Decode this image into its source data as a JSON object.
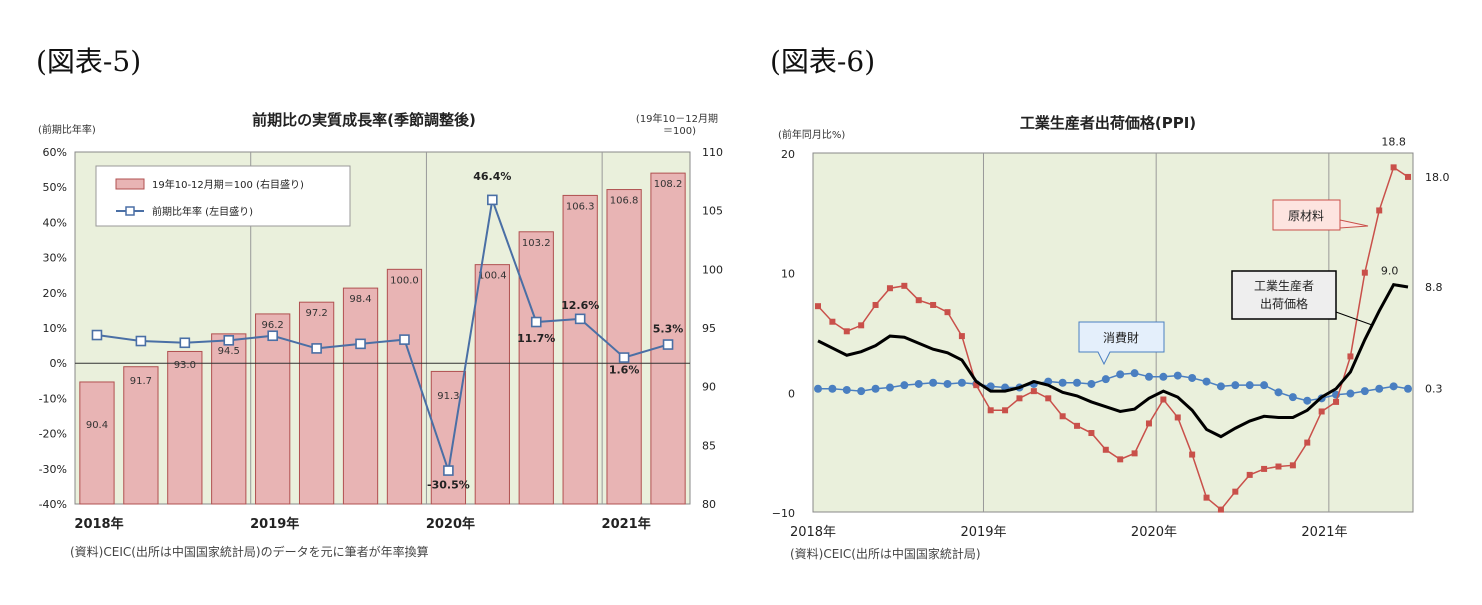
{
  "figure5": {
    "label": "(図表-5)",
    "title": "前期比の実質成長率(季節調整後)",
    "left_axis_label": "(前期比年率)",
    "right_axis_label_line1": "(19年10－12月期",
    "right_axis_label_line2": "＝100)",
    "legend_bar": "19年10-12月期＝100 (右目盛り)",
    "legend_line": "前期比年率 (左目盛り)",
    "source": "(資料)CEIC(出所は中国国家統計局)のデータを元に筆者が年率換算",
    "year_labels": [
      "2018年",
      "2019年",
      "2020年",
      "2021年"
    ]
  },
  "figure6": {
    "label": "(図表-6)",
    "title": "工業生産者出荷価格(PPI)",
    "left_axis_label": "(前年同月比%)",
    "callout_raw": "原材料",
    "callout_ppi_line1": "工業生産者",
    "callout_ppi_line2": "出荷価格",
    "callout_consumer": "消費財",
    "source": "(資料)CEIC(出所は中国国家統計局)",
    "year_labels": [
      "2018年",
      "2019年",
      "2020年",
      "2021年"
    ]
  },
  "chart_data": [
    {
      "type": "bar",
      "categories": [
        "2018Q1",
        "2018Q2",
        "2018Q3",
        "2018Q4",
        "2019Q1",
        "2019Q2",
        "2019Q3",
        "2019Q4",
        "2020Q1",
        "2020Q2",
        "2020Q3",
        "2020Q4",
        "2021Q1",
        "2021Q2"
      ],
      "series": [
        {
          "name": "19年10-12月期＝100 (右目盛り)",
          "axis": "right",
          "kind": "bar",
          "color": "#e8b4b4",
          "values": [
            90.4,
            91.7,
            93.0,
            94.5,
            96.2,
            97.2,
            98.4,
            100.0,
            91.3,
            100.4,
            103.2,
            106.3,
            106.8,
            108.2
          ],
          "labels": [
            "90.4",
            "91.7",
            "93.0",
            "94.5",
            "96.2",
            "97.2",
            "98.4",
            "100.0",
            "91.3",
            "100.4",
            "103.2",
            "106.3",
            "106.8",
            "108.2"
          ]
        },
        {
          "name": "前期比年率 (左目盛り)",
          "axis": "left",
          "kind": "line",
          "color": "#4a6fa5",
          "values": [
            8.0,
            6.3,
            5.8,
            6.5,
            7.8,
            4.2,
            5.5,
            6.7,
            -30.5,
            46.4,
            11.7,
            12.6,
            1.6,
            5.3
          ],
          "labels": [
            "",
            "",
            "",
            "",
            "",
            "",
            "",
            "",
            "-30.5%",
            "46.4%",
            "11.7%",
            "12.6%",
            "1.6%",
            "5.3%"
          ]
        }
      ],
      "y_left": {
        "min": -40,
        "max": 60,
        "step": 10,
        "tick_labels": [
          "-40%",
          "-30%",
          "-20%",
          "-10%",
          "0%",
          "10%",
          "20%",
          "30%",
          "40%",
          "50%",
          "60%"
        ]
      },
      "y_right": {
        "min": 80,
        "max": 110,
        "step": 5,
        "tick_labels": [
          "80",
          "85",
          "90",
          "95",
          "100",
          "105",
          "110"
        ]
      },
      "background": "#eaf0dc",
      "grid": "vertical year separators"
    },
    {
      "type": "line",
      "x_start": "2018-01",
      "x_end": "2021-06",
      "series": [
        {
          "name": "原材料",
          "color": "#c9504a",
          "marker": "square",
          "values": [
            7.2,
            5.9,
            5.1,
            5.6,
            7.3,
            8.7,
            8.9,
            7.7,
            7.3,
            6.7,
            4.7,
            0.6,
            -1.5,
            -1.5,
            -0.5,
            0.1,
            -0.5,
            -2.0,
            -2.8,
            -3.4,
            -4.8,
            -5.6,
            -5.1,
            -2.6,
            -0.6,
            -2.1,
            -5.2,
            -8.8,
            -9.8,
            -8.3,
            -6.9,
            -6.4,
            -6.2,
            -6.1,
            -4.2,
            -1.6,
            -0.8,
            3.0,
            10.0,
            15.2,
            18.8,
            18.0
          ],
          "first_label": "",
          "last_label": "18.0",
          "peak_label": "18.8"
        },
        {
          "name": "工業生産者出荷価格",
          "color": "#000000",
          "marker": "none",
          "values": [
            4.3,
            3.7,
            3.1,
            3.4,
            3.9,
            4.7,
            4.6,
            4.1,
            3.6,
            3.3,
            2.7,
            0.9,
            0.1,
            0.1,
            0.4,
            0.9,
            0.6,
            0.0,
            -0.3,
            -0.8,
            -1.2,
            -1.6,
            -1.4,
            -0.5,
            0.1,
            -0.4,
            -1.5,
            -3.1,
            -3.7,
            -3.0,
            -2.4,
            -2.0,
            -2.1,
            -2.1,
            -1.5,
            -0.4,
            0.3,
            1.7,
            4.4,
            6.8,
            9.0,
            8.8
          ],
          "last_label": "8.8",
          "peak_label": "9.0"
        },
        {
          "name": "消費財",
          "color": "#4a7fc1",
          "marker": "circle",
          "values": [
            0.3,
            0.3,
            0.2,
            0.1,
            0.3,
            0.4,
            0.6,
            0.7,
            0.8,
            0.7,
            0.8,
            0.7,
            0.5,
            0.4,
            0.4,
            0.7,
            0.9,
            0.8,
            0.8,
            0.7,
            1.1,
            1.5,
            1.6,
            1.3,
            1.3,
            1.4,
            1.2,
            0.9,
            0.5,
            0.6,
            0.6,
            0.6,
            0.0,
            -0.4,
            -0.7,
            -0.5,
            -0.2,
            -0.1,
            0.1,
            0.3,
            0.5,
            0.3
          ],
          "last_label": "0.3"
        }
      ],
      "y_left": {
        "min": -10,
        "max": 20,
        "tick_labels": [
          "−10",
          "0",
          "10",
          "20"
        ]
      },
      "background": "#eaf0dc",
      "grid": "vertical year separators"
    }
  ]
}
